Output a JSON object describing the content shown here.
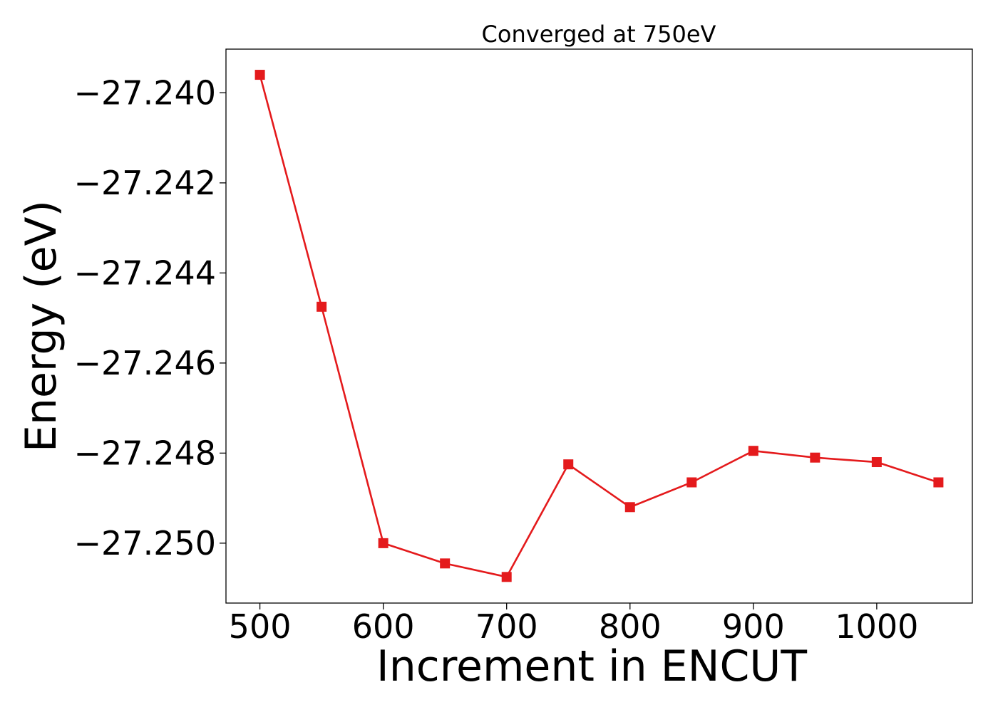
{
  "chart_data": {
    "type": "line",
    "title": "Converged at 750eV",
    "xlabel": "Increment in ENCUT",
    "ylabel": "Energy (eV)",
    "x": [
      500,
      550,
      600,
      650,
      700,
      750,
      800,
      850,
      900,
      950,
      1000,
      1050
    ],
    "series": [
      {
        "values": [
          -27.2396,
          -27.24475,
          -27.25,
          -27.25045,
          -27.25075,
          -27.24825,
          -27.2492,
          -27.24865,
          -27.24795,
          -27.2481,
          -27.2482,
          -27.24865
        ],
        "color": "#e41a1c",
        "marker": "square"
      }
    ],
    "xlim": [
      472.5,
      1077.5
    ],
    "ylim": [
      -27.25133,
      -27.23903
    ],
    "xticks": [
      500,
      600,
      700,
      800,
      900,
      1000
    ],
    "xtick_labels": [
      "500",
      "600",
      "700",
      "800",
      "900",
      "1000"
    ],
    "yticks": [
      -27.24,
      -27.242,
      -27.244,
      -27.246,
      -27.248,
      -27.25
    ],
    "ytick_labels": [
      "−27.240",
      "−27.242",
      "−27.244",
      "−27.246",
      "−27.248",
      "−27.250"
    ],
    "grid": false,
    "legend": "none"
  }
}
